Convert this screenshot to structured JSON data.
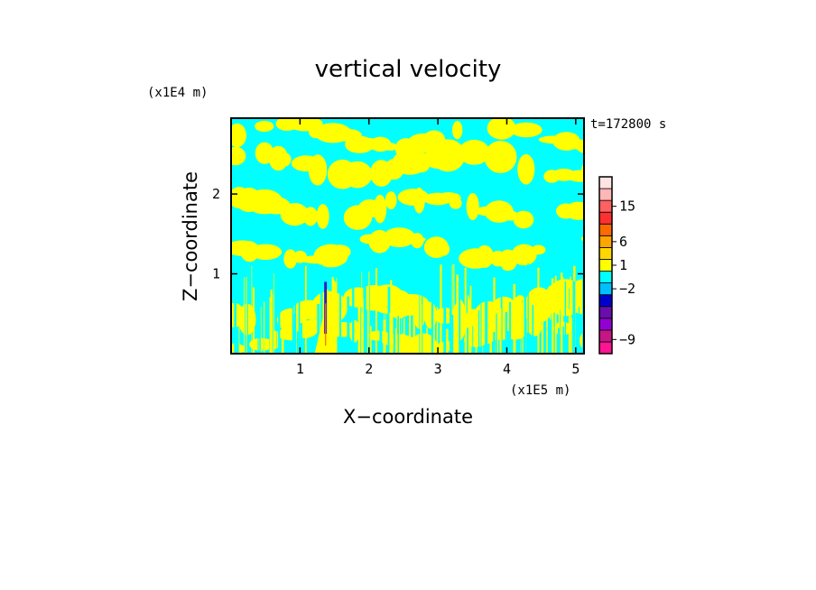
{
  "chart_data": {
    "type": "heatmap",
    "title": "vertical velocity",
    "xlabel": "X−coordinate",
    "ylabel": "Z−coordinate",
    "x_unit": "(x1E5 m)",
    "y_unit": "(x1E4 m)",
    "time_label": "t=172800 s",
    "xlim": [
      0,
      5.12
    ],
    "ylim": [
      0,
      2.95
    ],
    "x_ticks": [
      1,
      2,
      3,
      4,
      5
    ],
    "y_ticks": [
      1,
      2
    ],
    "field": {
      "yellow_color": "#ffff00",
      "cyan_color": "#00ffff",
      "dominant_pattern": "alternating horizontal bands of weak updraft (yellow) and weak downdraft (cyan), with vertical streaks in the lower layer",
      "plume_x": 1.37,
      "plume_top": 0.9
    },
    "colorbar": {
      "tick_labels": [
        "15",
        "6",
        "1",
        "−2",
        "−9"
      ],
      "levels": [
        {
          "color": "#ff1493"
        },
        {
          "color": "#c71585"
        },
        {
          "color": "#9400d3"
        },
        {
          "color": "#6a0dad"
        },
        {
          "color": "#0000cd"
        },
        {
          "color": "#00bfff"
        },
        {
          "color": "#00ffff"
        },
        {
          "color": "#ffff00"
        },
        {
          "color": "#ffd700"
        },
        {
          "color": "#ffa500"
        },
        {
          "color": "#ff6a00"
        },
        {
          "color": "#ff3030"
        },
        {
          "color": "#ff6060"
        },
        {
          "color": "#ffb6b6"
        },
        {
          "color": "#ffe4e4"
        }
      ]
    }
  }
}
